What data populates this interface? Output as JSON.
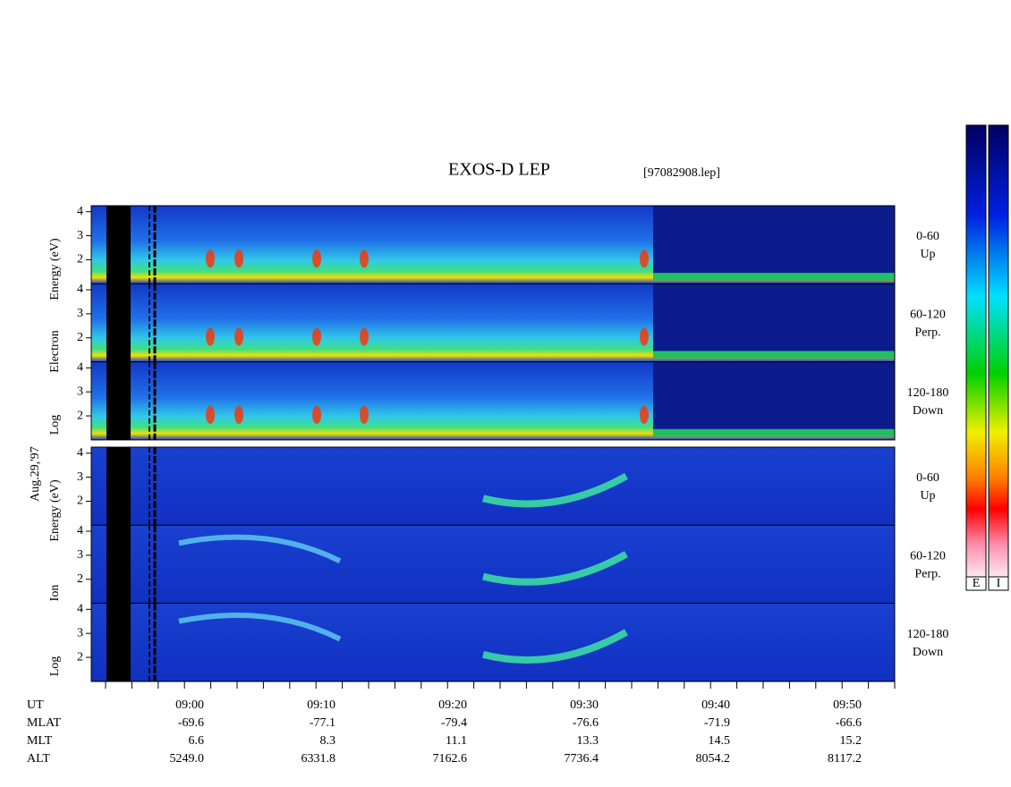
{
  "title": "EXOS-D LEP",
  "file": "[97082908.lep]",
  "date": "Aug.29,'97",
  "chart_data": [
    {
      "type": "spectrogram",
      "ylabel": [
        "Log",
        "Electron",
        "Energy (eV)"
      ],
      "ylim": [
        1,
        4.25
      ],
      "yticks": [
        2,
        3,
        4
      ],
      "panels": [
        {
          "label": [
            "0-60",
            "Up"
          ]
        },
        {
          "label": [
            "60-120",
            "Perp."
          ]
        },
        {
          "label": [
            "120-180",
            "Down"
          ]
        }
      ]
    },
    {
      "type": "spectrogram",
      "ylabel": [
        "Log",
        "Ion",
        "Energy (eV)"
      ],
      "ylim": [
        1,
        4.25
      ],
      "yticks": [
        2,
        3,
        4
      ],
      "panels": [
        {
          "label": [
            "0-60",
            "Up"
          ]
        },
        {
          "label": [
            "60-120",
            "Perp."
          ]
        },
        {
          "label": [
            "120-180",
            "Down"
          ]
        }
      ]
    }
  ],
  "ephemeris": [
    {
      "label": "UT",
      "values": [
        "09:00",
        "09:10",
        "09:20",
        "09:30",
        "09:40",
        "09:50"
      ]
    },
    {
      "label": "MLAT",
      "values": [
        "-69.6",
        "-77.1",
        "-79.4",
        "-76.6",
        "-71.9",
        "-66.6"
      ]
    },
    {
      "label": "MLT",
      "values": [
        "6.6",
        "8.3",
        "11.1",
        "13.3",
        "14.5",
        "15.2"
      ]
    },
    {
      "label": "ALT",
      "values": [
        "5249.0",
        "6331.8",
        "7162.6",
        "7736.4",
        "8054.2",
        "8117.2"
      ]
    }
  ],
  "colorbar": {
    "labels": [
      "E",
      "I"
    ]
  }
}
